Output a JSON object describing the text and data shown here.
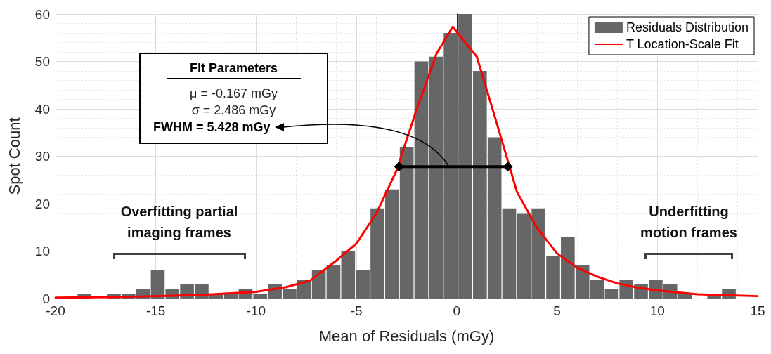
{
  "chart_data": {
    "type": "histogram",
    "xlabel": "Mean of Residuals (mGy)",
    "ylabel": "Spot Count",
    "bins": [
      -18.92,
      -18.19,
      -17.46,
      -16.73,
      -16.0,
      -15.27,
      -14.54,
      -13.81,
      -13.08,
      -12.35,
      -11.62,
      -10.89,
      -10.16,
      -9.43,
      -8.7,
      -7.97,
      -7.24,
      -6.51,
      -5.78,
      -5.05,
      -4.32,
      -3.59,
      -2.86,
      -2.13,
      -1.4,
      -0.67,
      0.06,
      0.79,
      1.52,
      2.25,
      2.98,
      3.71,
      4.44,
      5.17,
      5.9,
      6.63,
      7.36,
      8.09,
      8.82,
      9.55,
      10.28,
      11.01,
      11.74,
      12.47,
      13.2,
      13.93
    ],
    "xlim": [
      -20,
      15
    ],
    "xticks": [
      -20,
      -15,
      -10,
      -5,
      0,
      5,
      10,
      15
    ],
    "ylim": [
      0,
      60
    ],
    "yticks": [
      0,
      10,
      20,
      30,
      40,
      50,
      60
    ],
    "grid": true,
    "legend": "top right",
    "series": [
      {
        "name": "Residuals Distribution",
        "color": "#666666",
        "values": [
          1,
          0,
          1,
          1,
          2,
          6,
          2,
          3,
          3,
          1,
          1,
          2,
          1,
          3,
          2,
          4,
          6,
          7,
          10,
          6,
          19,
          23,
          32,
          50,
          51,
          56,
          60,
          48,
          34,
          19,
          18,
          19,
          9,
          13,
          7,
          4,
          2,
          4,
          3,
          4,
          3,
          1,
          0,
          1,
          2
        ]
      },
      {
        "type": "line",
        "name": "T Location-Scale Fit",
        "color": "#ff0000",
        "marker": "none",
        "x": [
          -20,
          -17.2,
          -15,
          -12.5,
          -10,
          -8.5,
          -7.3,
          -6,
          -5,
          -4,
          -3,
          -2,
          -1,
          -0.2,
          1,
          2,
          3,
          4,
          5,
          6,
          7,
          8,
          9,
          10,
          12,
          15
        ],
        "values": [
          0.2,
          0.3,
          0.5,
          0.8,
          1.4,
          2.4,
          3.8,
          8,
          11.6,
          18,
          27,
          39.9,
          51.7,
          57.3,
          51,
          36.9,
          22.5,
          14.9,
          9.5,
          6.5,
          4.6,
          3.2,
          2.3,
          1.7,
          0.9,
          0.5
        ]
      },
      {
        "type": "line",
        "color": "#000000",
        "marker": "diamond",
        "x": [
          -2.881,
          2.547
        ],
        "values": [
          27.8,
          27.8
        ]
      }
    ],
    "annotations": [
      "Fit Parameters",
      "μ = -0.167 mGy",
      "σ = 2.486 mGy",
      {
        "text": "FWHM = 5.428 mGy",
        "x": -0.4,
        "y": 27.8
      },
      "Overfitting partial imaging frames",
      "Underfitting motion frames"
    ]
  }
}
